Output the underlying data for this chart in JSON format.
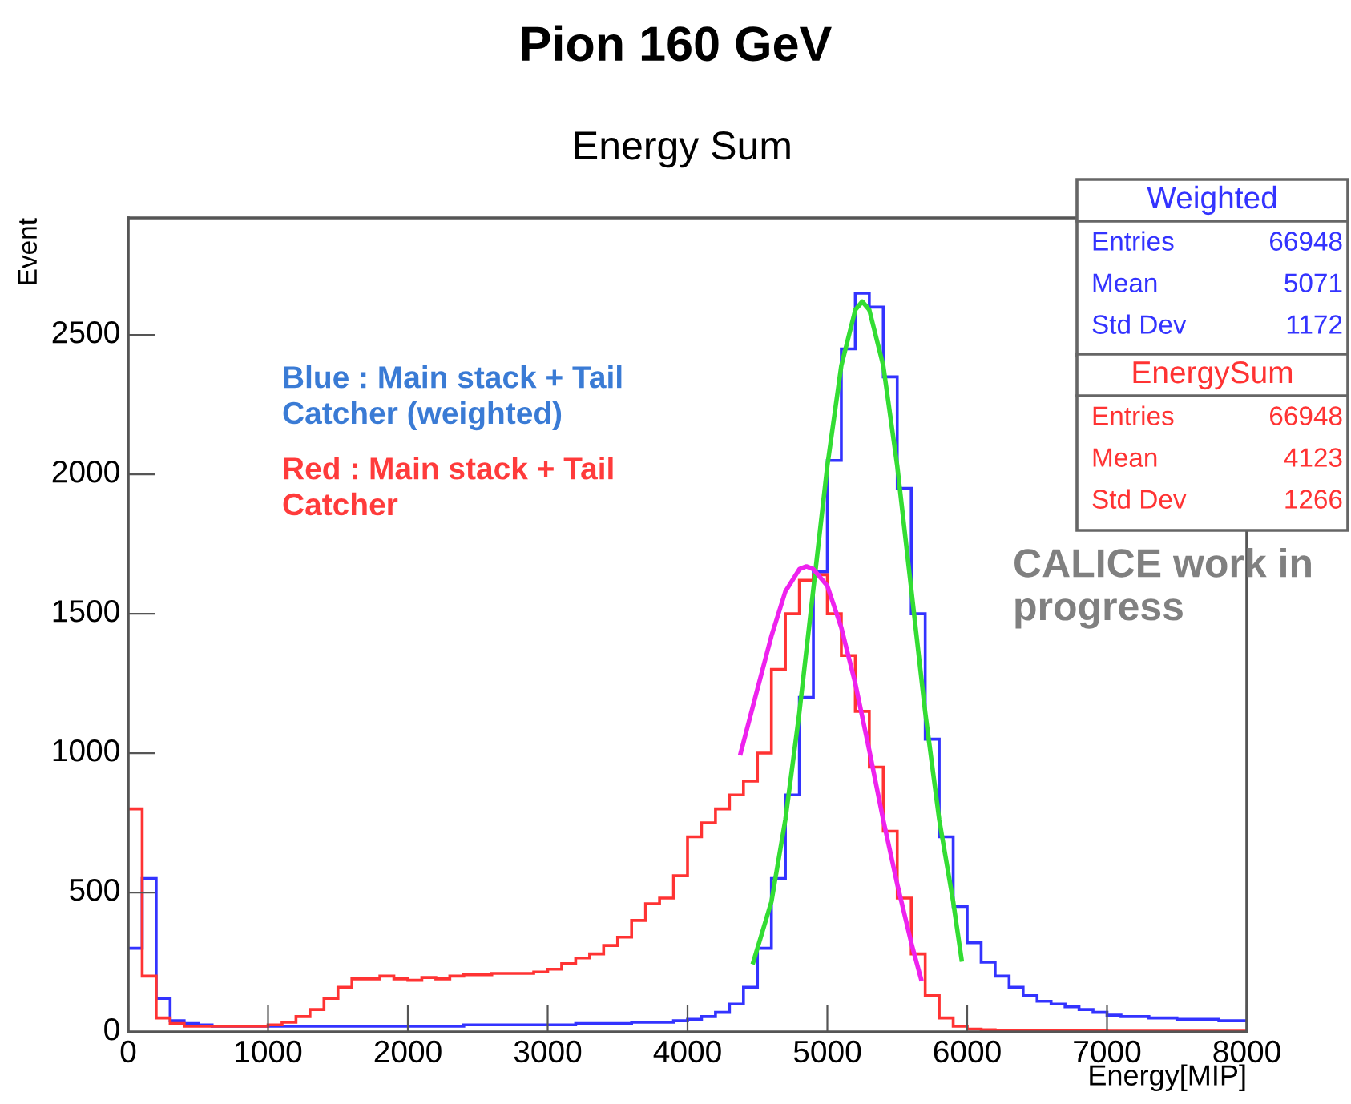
{
  "chart_data": {
    "type": "histogram",
    "title": "Pion 160 GeV",
    "subtitle": "Energy Sum",
    "xlabel": "Energy[MIP]",
    "ylabel": "Event",
    "bins": [
      0,
      100,
      200,
      300,
      400,
      500,
      600,
      700,
      800,
      900,
      1000,
      1100,
      1200,
      1300,
      1400,
      1500,
      1600,
      1700,
      1800,
      1900,
      2000,
      2100,
      2200,
      2300,
      2400,
      2500,
      2600,
      2700,
      2800,
      2900,
      3000,
      3100,
      3200,
      3300,
      3400,
      3500,
      3600,
      3700,
      3800,
      3900,
      4000,
      4100,
      4200,
      4300,
      4400,
      4500,
      4600,
      4700,
      4800,
      4900,
      5000,
      5100,
      5200,
      5300,
      5400,
      5500,
      5600,
      5700,
      5800,
      5900,
      6000,
      6100,
      6200,
      6300,
      6400,
      6500,
      6600,
      6700,
      6800,
      6900,
      7000,
      7100,
      7200,
      7300,
      7400,
      7500,
      7600,
      7700,
      7800,
      7900,
      8000
    ],
    "series": [
      {
        "name": "Weighted",
        "color": "#3333ff",
        "values": [
          300,
          550,
          120,
          40,
          30,
          25,
          20,
          20,
          20,
          20,
          20,
          20,
          20,
          20,
          20,
          20,
          20,
          20,
          20,
          20,
          20,
          20,
          20,
          20,
          25,
          25,
          25,
          25,
          25,
          25,
          25,
          25,
          30,
          30,
          30,
          30,
          35,
          35,
          35,
          40,
          45,
          55,
          70,
          100,
          160,
          300,
          550,
          850,
          1200,
          1650,
          2050,
          2450,
          2650,
          2600,
          2350,
          1950,
          1500,
          1050,
          700,
          450,
          320,
          250,
          200,
          160,
          130,
          110,
          100,
          90,
          80,
          70,
          60,
          55,
          55,
          50,
          50,
          45,
          45,
          45,
          40,
          40
        ]
      },
      {
        "name": "EnergySum",
        "color": "#ff3333",
        "values": [
          800,
          200,
          50,
          30,
          20,
          20,
          20,
          20,
          20,
          20,
          25,
          35,
          55,
          80,
          120,
          160,
          190,
          190,
          200,
          190,
          185,
          195,
          190,
          200,
          205,
          205,
          210,
          210,
          210,
          215,
          225,
          245,
          265,
          280,
          310,
          340,
          400,
          460,
          480,
          560,
          700,
          750,
          800,
          850,
          900,
          1000,
          1300,
          1500,
          1620,
          1640,
          1500,
          1350,
          1150,
          950,
          720,
          480,
          280,
          130,
          50,
          20,
          10,
          8,
          6,
          5,
          5,
          5,
          4,
          4,
          4,
          4,
          3,
          3,
          3,
          3,
          3,
          3,
          3,
          3,
          3,
          3
        ]
      },
      {
        "type": "line",
        "color": "#33dd33",
        "x": [
          4470,
          4600,
          4700,
          4800,
          4900,
          5000,
          5100,
          5200,
          5250,
          5300,
          5400,
          5500,
          5600,
          5700,
          5800,
          5900,
          5960
        ],
        "values": [
          250,
          467,
          762,
          1146,
          1589,
          2030,
          2390,
          2590,
          2620,
          2590,
          2390,
          2030,
          1589,
          1146,
          762,
          467,
          260
        ]
      },
      {
        "type": "line",
        "color": "#ee22ee",
        "x": [
          4380,
          4500,
          4600,
          4700,
          4800,
          4850,
          4900,
          5000,
          5100,
          5200,
          5300,
          5400,
          5500,
          5600,
          5670
        ],
        "values": [
          1000,
          1230,
          1420,
          1580,
          1660,
          1670,
          1660,
          1600,
          1450,
          1250,
          1010,
          760,
          530,
          320,
          190
        ]
      }
    ],
    "xlim": [
      0,
      8000
    ],
    "ylim": [
      0,
      2920
    ],
    "xticks": [
      0,
      1000,
      2000,
      3000,
      4000,
      5000,
      6000,
      7000,
      8000
    ],
    "yticks": [
      0,
      500,
      1000,
      1500,
      2000,
      2500
    ],
    "grid": false,
    "legend": false,
    "annotations": [
      "Blue : Main stack + Tail Catcher (weighted)",
      "Red : Main stack + Tail Catcher",
      "CALICE work in progress",
      "Entries",
      "66948",
      "Mean",
      "5071",
      "Std Dev",
      "1172",
      "Entries",
      "66948",
      "Mean",
      "4123",
      "Std Dev",
      "1266"
    ]
  }
}
